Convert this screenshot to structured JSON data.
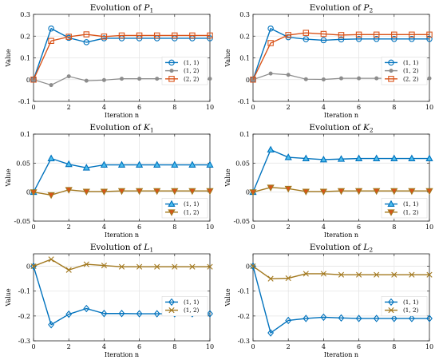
{
  "figure": {
    "background": "#ffffff"
  },
  "colors": {
    "blue": "#0072BD",
    "gray": "#8C8C8C",
    "orange": "#D95319",
    "brown": "#A2781E",
    "blue_fill": "#4DBEEE"
  },
  "chart_data": [
    {
      "type": "line",
      "title": "Evolution of P1",
      "title_main": "Evolution of ",
      "title_sym": "P",
      "title_sub": "1",
      "xlabel": "Iteration n",
      "ylabel": "Value",
      "xlim": [
        0,
        10
      ],
      "ylim": [
        -0.1,
        0.3
      ],
      "xticks": [
        0,
        2,
        4,
        6,
        8,
        10
      ],
      "yticks": [
        -0.1,
        0,
        0.1,
        0.2,
        0.3
      ],
      "ytick_labels": [
        "-0.1",
        "0",
        "0.1",
        "0.2",
        "0.3"
      ],
      "legend_position": "right-middle",
      "x": [
        0,
        1,
        2,
        3,
        4,
        5,
        6,
        7,
        8,
        9,
        10
      ],
      "series": [
        {
          "name": "(1, 1)",
          "color": "#0072BD",
          "marker": "circle",
          "fill": "none",
          "values": [
            0,
            0.235,
            0.192,
            0.172,
            0.19,
            0.19,
            0.19,
            0.19,
            0.19,
            0.19,
            0.19
          ]
        },
        {
          "name": "(1, 2)",
          "color": "#8C8C8C",
          "marker": "dot",
          "fill": "#8C8C8C",
          "values": [
            0,
            -0.025,
            0.015,
            -0.005,
            -0.002,
            0.004,
            0.004,
            0.004,
            0.004,
            0.004,
            0.004
          ]
        },
        {
          "name": "(2, 2)",
          "color": "#D95319",
          "marker": "square",
          "fill": "none",
          "values": [
            0,
            0.178,
            0.197,
            0.208,
            0.198,
            0.203,
            0.203,
            0.203,
            0.203,
            0.203,
            0.203
          ]
        }
      ]
    },
    {
      "type": "line",
      "title": "Evolution of P2",
      "title_main": "Evolution of ",
      "title_sym": "P",
      "title_sub": "2",
      "xlabel": "Iteration n",
      "ylabel": "Value",
      "xlim": [
        0,
        10
      ],
      "ylim": [
        -0.1,
        0.3
      ],
      "xticks": [
        0,
        2,
        4,
        6,
        8,
        10
      ],
      "yticks": [
        -0.1,
        0,
        0.1,
        0.2,
        0.3
      ],
      "ytick_labels": [
        "-0.1",
        "0",
        "0.1",
        "0.2",
        "0.3"
      ],
      "legend_position": "right-middle",
      "x": [
        0,
        1,
        2,
        3,
        4,
        5,
        6,
        7,
        8,
        9,
        10
      ],
      "series": [
        {
          "name": "(1, 1)",
          "color": "#0072BD",
          "marker": "circle",
          "fill": "none",
          "values": [
            0,
            0.235,
            0.195,
            0.186,
            0.181,
            0.185,
            0.187,
            0.187,
            0.187,
            0.187,
            0.187
          ]
        },
        {
          "name": "(1, 2)",
          "color": "#8C8C8C",
          "marker": "dot",
          "fill": "#8C8C8C",
          "values": [
            0,
            0.028,
            0.022,
            0.002,
            0.001,
            0.006,
            0.006,
            0.006,
            0.006,
            0.006,
            0.006
          ]
        },
        {
          "name": "(2, 2)",
          "color": "#D95319",
          "marker": "square",
          "fill": "none",
          "values": [
            0,
            0.168,
            0.205,
            0.215,
            0.21,
            0.205,
            0.207,
            0.207,
            0.207,
            0.207,
            0.207
          ]
        }
      ]
    },
    {
      "type": "line",
      "title": "Evolution of K1",
      "title_main": "Evolution of ",
      "title_sym": "K",
      "title_sub": "1",
      "xlabel": "Iteration n",
      "ylabel": "Value",
      "xlim": [
        0,
        10
      ],
      "ylim": [
        -0.05,
        0.1
      ],
      "xticks": [
        0,
        2,
        4,
        6,
        8,
        10
      ],
      "yticks": [
        -0.05,
        0,
        0.05,
        0.1
      ],
      "ytick_labels": [
        "-0.05",
        "0",
        "0.05",
        "0.1"
      ],
      "legend_position": "bottom-right",
      "x": [
        0,
        1,
        2,
        3,
        4,
        5,
        6,
        7,
        8,
        9,
        10
      ],
      "series": [
        {
          "name": "(1, 1)",
          "color": "#0072BD",
          "marker": "triangle-up",
          "fill": "#4DBEEE",
          "values": [
            0,
            0.058,
            0.048,
            0.042,
            0.047,
            0.047,
            0.047,
            0.047,
            0.047,
            0.047,
            0.047
          ]
        },
        {
          "name": "(1, 2)",
          "color": "#A2781E",
          "marker": "triangle-down",
          "fill": "#D95319",
          "values": [
            0,
            -0.005,
            0.004,
            0.001,
            0.001,
            0.002,
            0.002,
            0.002,
            0.002,
            0.002,
            0.002
          ]
        }
      ]
    },
    {
      "type": "line",
      "title": "Evolution of K2",
      "title_main": "Evolution of ",
      "title_sym": "K",
      "title_sub": "2",
      "xlabel": "Iteration n",
      "ylabel": "Value",
      "xlim": [
        0,
        10
      ],
      "ylim": [
        -0.05,
        0.1
      ],
      "xticks": [
        0,
        2,
        4,
        6,
        8,
        10
      ],
      "yticks": [
        -0.05,
        0,
        0.05,
        0.1
      ],
      "ytick_labels": [
        "-0.05",
        "0",
        "0.05",
        "0.1"
      ],
      "legend_position": "bottom-right",
      "x": [
        0,
        1,
        2,
        3,
        4,
        5,
        6,
        7,
        8,
        9,
        10
      ],
      "series": [
        {
          "name": "(1, 1)",
          "color": "#0072BD",
          "marker": "triangle-up",
          "fill": "#4DBEEE",
          "values": [
            0,
            0.073,
            0.06,
            0.058,
            0.056,
            0.057,
            0.058,
            0.058,
            0.058,
            0.058,
            0.058
          ]
        },
        {
          "name": "(1, 2)",
          "color": "#A2781E",
          "marker": "triangle-down",
          "fill": "#D95319",
          "values": [
            0,
            0.008,
            0.006,
            0.001,
            0.001,
            0.002,
            0.002,
            0.002,
            0.002,
            0.002,
            0.002
          ]
        }
      ]
    },
    {
      "type": "line",
      "title": "Evolution of L1",
      "title_main": "Evolution of ",
      "title_sym": "L",
      "title_sub": "1",
      "xlabel": "Iteration n",
      "ylabel": "Value",
      "xlim": [
        0,
        10
      ],
      "ylim": [
        -0.3,
        0.05
      ],
      "xticks": [
        0,
        2,
        4,
        6,
        8,
        10
      ],
      "yticks": [
        -0.3,
        -0.2,
        -0.1,
        0
      ],
      "ytick_labels": [
        "-0.3",
        "-0.2",
        "-0.1",
        "0"
      ],
      "legend_position": "right-middle",
      "x": [
        0,
        1,
        2,
        3,
        4,
        5,
        6,
        7,
        8,
        9,
        10
      ],
      "series": [
        {
          "name": "(1, 1)",
          "color": "#0072BD",
          "marker": "diamond",
          "fill": "none",
          "values": [
            0,
            -0.235,
            -0.193,
            -0.17,
            -0.19,
            -0.19,
            -0.191,
            -0.191,
            -0.191,
            -0.191,
            -0.191
          ]
        },
        {
          "name": "(1, 2)",
          "color": "#A2781E",
          "marker": "x",
          "fill": "none",
          "values": [
            0,
            0.028,
            -0.015,
            0.008,
            0.003,
            -0.002,
            -0.002,
            -0.002,
            -0.002,
            -0.002,
            -0.002
          ]
        }
      ]
    },
    {
      "type": "line",
      "title": "Evolution of L2",
      "title_main": "Evolution of ",
      "title_sym": "L",
      "title_sub": "2",
      "xlabel": "Iteration n",
      "ylabel": "Value",
      "xlim": [
        0,
        10
      ],
      "ylim": [
        -0.3,
        0.05
      ],
      "xticks": [
        0,
        2,
        4,
        6,
        8,
        10
      ],
      "yticks": [
        -0.3,
        -0.2,
        -0.1,
        0
      ],
      "ytick_labels": [
        "-0.3",
        "-0.2",
        "-0.1",
        "0"
      ],
      "legend_position": "right-middle",
      "x": [
        0,
        1,
        2,
        3,
        4,
        5,
        6,
        7,
        8,
        9,
        10
      ],
      "series": [
        {
          "name": "(1, 1)",
          "color": "#0072BD",
          "marker": "diamond",
          "fill": "none",
          "values": [
            0,
            -0.268,
            -0.218,
            -0.21,
            -0.205,
            -0.208,
            -0.21,
            -0.21,
            -0.21,
            -0.21,
            -0.21
          ]
        },
        {
          "name": "(1, 2)",
          "color": "#A2781E",
          "marker": "x",
          "fill": "none",
          "values": [
            0,
            -0.05,
            -0.048,
            -0.03,
            -0.03,
            -0.034,
            -0.034,
            -0.034,
            -0.034,
            -0.034,
            -0.034
          ]
        }
      ]
    }
  ]
}
